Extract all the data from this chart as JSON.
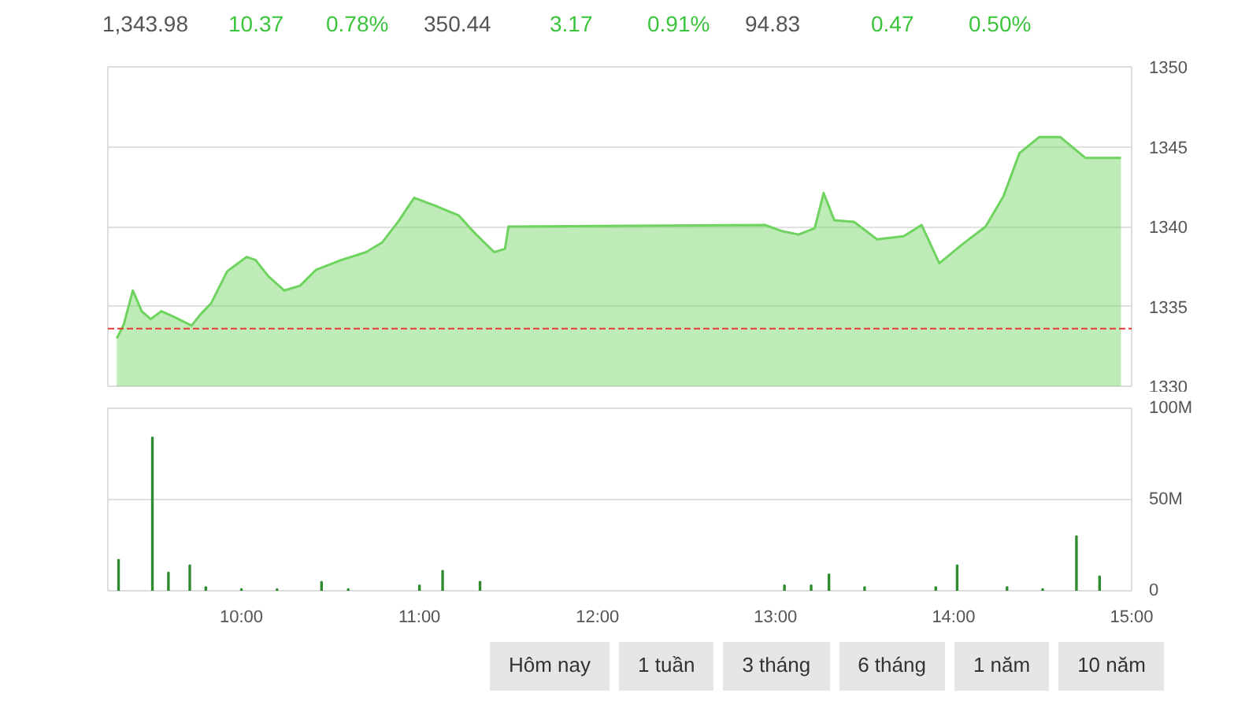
{
  "chart_data": [
    {
      "type": "area",
      "x": [
        9.3,
        9.34,
        9.39,
        9.44,
        9.49,
        9.55,
        9.61,
        9.72,
        9.77,
        9.83,
        9.92,
        10.03,
        10.08,
        10.15,
        10.24,
        10.33,
        10.42,
        10.56,
        10.7,
        10.79,
        10.88,
        10.97,
        11.09,
        11.22,
        11.31,
        11.42,
        11.48,
        11.5,
        12.94,
        13.04,
        13.13,
        13.22,
        13.27,
        13.33,
        13.44,
        13.57,
        13.72,
        13.82,
        13.92,
        14.05,
        14.18,
        14.28,
        14.37,
        14.48,
        14.6,
        14.74,
        14.94
      ],
      "series": [
        {
          "color": "#6fd35f",
          "values": [
            1333.0,
            1333.9,
            1336.0,
            1334.7,
            1334.2,
            1334.7,
            1334.4,
            1333.8,
            1334.5,
            1335.2,
            1337.2,
            1338.1,
            1337.9,
            1336.9,
            1336.0,
            1336.3,
            1337.3,
            1337.9,
            1338.4,
            1339.0,
            1340.3,
            1341.8,
            1341.3,
            1340.7,
            1339.6,
            1338.4,
            1338.6,
            1340.0,
            1340.1,
            1339.7,
            1339.5,
            1339.9,
            1342.1,
            1340.4,
            1340.3,
            1339.2,
            1339.4,
            1340.1,
            1337.7,
            1338.9,
            1340.0,
            1341.9,
            1344.6,
            1345.6,
            1345.6,
            1344.3,
            1344.3
          ]
        }
      ],
      "xlim": [
        9.25,
        15
      ],
      "ylim": [
        1330,
        1350
      ],
      "yticks": [
        1330,
        1335,
        1340,
        1345,
        1350
      ],
      "grid": "y",
      "tick_labels": "y",
      "ref_lines": [
        {
          "axis": "y",
          "value": 1333.61,
          "color": "#e53935",
          "line_style": "dashed"
        }
      ],
      "annotations": [
        "1,343.98",
        "10.37",
        "0.78%",
        "350.44",
        "3.17",
        "0.91%",
        "94.83",
        "0.47",
        "0.50%"
      ]
    },
    {
      "type": "bar",
      "x": [
        9.31,
        9.5,
        9.59,
        9.71,
        9.8,
        10.0,
        10.2,
        10.45,
        10.6,
        11.0,
        11.13,
        11.34,
        13.05,
        13.2,
        13.3,
        13.5,
        13.9,
        14.02,
        14.3,
        14.5,
        14.69,
        14.82
      ],
      "series": [
        {
          "color": "#2e8b2e",
          "values": [
            17,
            84,
            10,
            14,
            2,
            1,
            1,
            5,
            1,
            3,
            11,
            5,
            3,
            3,
            9,
            2,
            2,
            14,
            2,
            1,
            30,
            8
          ]
        }
      ],
      "xlim": [
        9.25,
        15
      ],
      "ylim": [
        0,
        100
      ],
      "xticks": [
        {
          "value": 10,
          "label": "10:00"
        },
        {
          "value": 11,
          "label": "11:00"
        },
        {
          "value": 12,
          "label": "12:00"
        },
        {
          "value": 13,
          "label": "13:00"
        },
        {
          "value": 14,
          "label": "14:00"
        },
        {
          "value": 15,
          "label": "15:00"
        }
      ],
      "yticks": [
        0,
        {
          "value": 50,
          "label": "50M"
        },
        {
          "value": 100,
          "label": "100M"
        }
      ],
      "grid": "y",
      "annotations": [
        "Hôm nay",
        "1 tuần",
        "3 tháng",
        "6 tháng",
        "1 năm",
        "10 năm"
      ]
    }
  ]
}
